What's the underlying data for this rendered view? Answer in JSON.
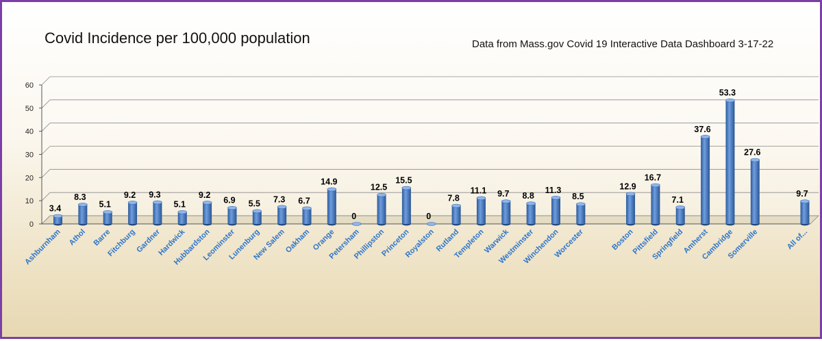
{
  "chart_data": {
    "type": "bar",
    "title": "Covid Incidence per 100,000 population",
    "subtitle": "Data from Mass.gov Covid 19 Interactive Data Dashboard 3-17-22",
    "xlabel": "",
    "ylabel": "",
    "ylim": [
      0,
      60
    ],
    "yticks": [
      0,
      10,
      20,
      30,
      40,
      50,
      60
    ],
    "grid": true,
    "legend": "none",
    "bar_color": "#4a7ec4",
    "categories": [
      "Ashburnham",
      "Athol",
      "Barre",
      "Fitchburg",
      "Gardner",
      "Hardwick",
      "Hubbardston",
      "Leominster",
      "Lunenburg",
      "New Salem",
      "Oakham",
      "Orange",
      "Petersham",
      "Phillipston",
      "Princeton",
      "Royalston",
      "Rutland",
      "Templeton",
      "Warwick",
      "Westminster",
      "Winchendon",
      "Worcester",
      "",
      "Boston",
      "Pittsfield",
      "Springfield",
      "Amherst",
      "Cambridge",
      "Somerville",
      "",
      "All of..."
    ],
    "values": [
      3.4,
      8.3,
      5.1,
      9.2,
      9.3,
      5.1,
      9.2,
      6.9,
      5.5,
      7.3,
      6.7,
      14.9,
      0,
      12.5,
      15.5,
      0,
      7.8,
      11.1,
      9.7,
      8.8,
      11.3,
      8.5,
      null,
      12.9,
      16.7,
      7.1,
      37.6,
      53.3,
      27.6,
      null,
      9.7
    ],
    "data_labels": [
      "3.4",
      "8.3",
      "5.1",
      "9.2",
      "9.3",
      "5.1",
      "9.2",
      "6.9",
      "5.5",
      "7.3",
      "6.7",
      "14.9",
      "0",
      "12.5",
      "15.5",
      "0",
      "7.8",
      "11.1",
      "9.7",
      "8.8",
      "11.3",
      "8.5",
      "",
      "12.9",
      "16.7",
      "7.1",
      "37.6",
      "53.3",
      "27.6",
      "",
      "9.7"
    ]
  }
}
